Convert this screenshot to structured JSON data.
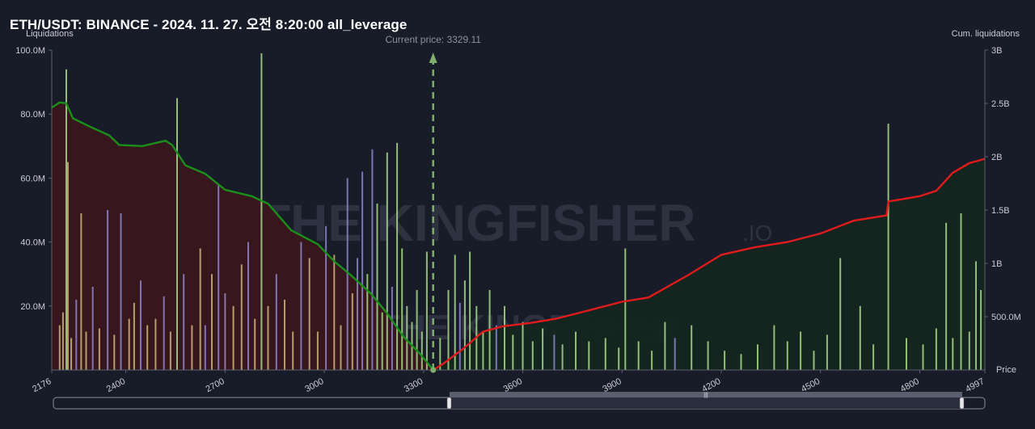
{
  "title": "ETH/USDT: BINANCE - 2024. 11. 27. 오전 8:20:00 all_leverage",
  "watermark": {
    "brand": "THE KINGFISHER",
    "suffix": ".IO"
  },
  "colors": {
    "background": "#181b28",
    "cumulative_short": "#1a8f1a",
    "cumulative_long": "#e01b1b",
    "short_fill": "#3a161d",
    "long_fill": "#13261d",
    "bars_below": "#c9b77a",
    "bars_above": "#a8d98a",
    "bars_alt": "#8d86c9",
    "current_price_line": "#7fae6e"
  },
  "chart_data": {
    "type": "bar+area",
    "title": "ETH/USDT: BINANCE - 2024. 11. 27. 오전 8:20:00 all_leverage",
    "ylabel_left": "Liquidations",
    "ylabel_right": "Cum. liquidations",
    "xlabel": "Price",
    "xlim": [
      2176,
      4997
    ],
    "ylim_left": [
      0,
      100000000
    ],
    "ylim_right": [
      0,
      3000000000
    ],
    "x_ticks": [
      2176,
      2400,
      2700,
      3000,
      3300,
      3600,
      3900,
      4200,
      4500,
      4800,
      4997
    ],
    "y_left_ticks": [
      {
        "value": 20000000,
        "label": "20.0M"
      },
      {
        "value": 40000000,
        "label": "40.0M"
      },
      {
        "value": 60000000,
        "label": "60.0M"
      },
      {
        "value": 80000000,
        "label": "80.0M"
      },
      {
        "value": 100000000,
        "label": "100.0M"
      }
    ],
    "y_right_ticks": [
      {
        "value": 500000000,
        "label": "500.0M"
      },
      {
        "value": 1000000000,
        "label": "1B"
      },
      {
        "value": 1500000000,
        "label": "1.5B"
      },
      {
        "value": 2000000000,
        "label": "2B"
      },
      {
        "value": 2500000000,
        "label": "2.5B"
      },
      {
        "value": 3000000000,
        "label": "3B"
      }
    ],
    "current_price": 3329.11,
    "current_price_label": "Current price: 3329.11",
    "bars": [
      {
        "x": 2200,
        "y": 14000000,
        "c": "bars_below"
      },
      {
        "x": 2210,
        "y": 18000000,
        "c": "bars_below"
      },
      {
        "x": 2220,
        "y": 94000000,
        "c": "bars_above"
      },
      {
        "x": 2225,
        "y": 65000000,
        "c": "bars_below"
      },
      {
        "x": 2235,
        "y": 10000000,
        "c": "bars_below"
      },
      {
        "x": 2250,
        "y": 22000000,
        "c": "bars_alt"
      },
      {
        "x": 2265,
        "y": 49000000,
        "c": "bars_below"
      },
      {
        "x": 2280,
        "y": 12000000,
        "c": "bars_below"
      },
      {
        "x": 2300,
        "y": 26000000,
        "c": "bars_alt"
      },
      {
        "x": 2320,
        "y": 13000000,
        "c": "bars_below"
      },
      {
        "x": 2345,
        "y": 50000000,
        "c": "bars_alt"
      },
      {
        "x": 2365,
        "y": 11000000,
        "c": "bars_below"
      },
      {
        "x": 2385,
        "y": 49000000,
        "c": "bars_alt"
      },
      {
        "x": 2410,
        "y": 16000000,
        "c": "bars_below"
      },
      {
        "x": 2425,
        "y": 21000000,
        "c": "bars_below"
      },
      {
        "x": 2445,
        "y": 28000000,
        "c": "bars_alt"
      },
      {
        "x": 2465,
        "y": 14000000,
        "c": "bars_below"
      },
      {
        "x": 2490,
        "y": 16000000,
        "c": "bars_below"
      },
      {
        "x": 2515,
        "y": 23000000,
        "c": "bars_alt"
      },
      {
        "x": 2535,
        "y": 12000000,
        "c": "bars_below"
      },
      {
        "x": 2555,
        "y": 85000000,
        "c": "bars_above"
      },
      {
        "x": 2575,
        "y": 30000000,
        "c": "bars_alt"
      },
      {
        "x": 2600,
        "y": 14000000,
        "c": "bars_below"
      },
      {
        "x": 2625,
        "y": 38000000,
        "c": "bars_below"
      },
      {
        "x": 2640,
        "y": 14000000,
        "c": "bars_alt"
      },
      {
        "x": 2660,
        "y": 30000000,
        "c": "bars_below"
      },
      {
        "x": 2680,
        "y": 58000000,
        "c": "bars_alt"
      },
      {
        "x": 2700,
        "y": 24000000,
        "c": "bars_alt"
      },
      {
        "x": 2725,
        "y": 20000000,
        "c": "bars_below"
      },
      {
        "x": 2750,
        "y": 33000000,
        "c": "bars_below"
      },
      {
        "x": 2770,
        "y": 40000000,
        "c": "bars_alt"
      },
      {
        "x": 2790,
        "y": 16000000,
        "c": "bars_below"
      },
      {
        "x": 2810,
        "y": 99000000,
        "c": "bars_above"
      },
      {
        "x": 2830,
        "y": 20000000,
        "c": "bars_below"
      },
      {
        "x": 2855,
        "y": 30000000,
        "c": "bars_alt"
      },
      {
        "x": 2880,
        "y": 22000000,
        "c": "bars_below"
      },
      {
        "x": 2905,
        "y": 12000000,
        "c": "bars_below"
      },
      {
        "x": 2930,
        "y": 40000000,
        "c": "bars_alt"
      },
      {
        "x": 2955,
        "y": 35000000,
        "c": "bars_below"
      },
      {
        "x": 2980,
        "y": 12000000,
        "c": "bars_below"
      },
      {
        "x": 3005,
        "y": 45000000,
        "c": "bars_alt"
      },
      {
        "x": 3030,
        "y": 36000000,
        "c": "bars_below"
      },
      {
        "x": 3050,
        "y": 14000000,
        "c": "bars_below"
      },
      {
        "x": 3070,
        "y": 60000000,
        "c": "bars_alt"
      },
      {
        "x": 3085,
        "y": 24000000,
        "c": "bars_below"
      },
      {
        "x": 3100,
        "y": 35000000,
        "c": "bars_alt"
      },
      {
        "x": 3115,
        "y": 62000000,
        "c": "bars_alt"
      },
      {
        "x": 3130,
        "y": 30000000,
        "c": "bars_above"
      },
      {
        "x": 3145,
        "y": 69000000,
        "c": "bars_alt"
      },
      {
        "x": 3160,
        "y": 52000000,
        "c": "bars_above"
      },
      {
        "x": 3175,
        "y": 18000000,
        "c": "bars_above"
      },
      {
        "x": 3190,
        "y": 68000000,
        "c": "bars_above"
      },
      {
        "x": 3205,
        "y": 26000000,
        "c": "bars_alt"
      },
      {
        "x": 3220,
        "y": 71000000,
        "c": "bars_above"
      },
      {
        "x": 3235,
        "y": 38000000,
        "c": "bars_above"
      },
      {
        "x": 3250,
        "y": 20000000,
        "c": "bars_above"
      },
      {
        "x": 3265,
        "y": 15000000,
        "c": "bars_above"
      },
      {
        "x": 3280,
        "y": 25000000,
        "c": "bars_above"
      },
      {
        "x": 3295,
        "y": 12000000,
        "c": "bars_above"
      },
      {
        "x": 3310,
        "y": 37000000,
        "c": "bars_above"
      },
      {
        "x": 3350,
        "y": 10000000,
        "c": "bars_above"
      },
      {
        "x": 3375,
        "y": 25000000,
        "c": "bars_above"
      },
      {
        "x": 3395,
        "y": 36000000,
        "c": "bars_above"
      },
      {
        "x": 3410,
        "y": 21000000,
        "c": "bars_alt"
      },
      {
        "x": 3425,
        "y": 28000000,
        "c": "bars_above"
      },
      {
        "x": 3440,
        "y": 37000000,
        "c": "bars_above"
      },
      {
        "x": 3460,
        "y": 20000000,
        "c": "bars_above"
      },
      {
        "x": 3480,
        "y": 12000000,
        "c": "bars_above"
      },
      {
        "x": 3500,
        "y": 25000000,
        "c": "bars_above"
      },
      {
        "x": 3520,
        "y": 14000000,
        "c": "bars_alt"
      },
      {
        "x": 3545,
        "y": 20000000,
        "c": "bars_above"
      },
      {
        "x": 3570,
        "y": 11000000,
        "c": "bars_above"
      },
      {
        "x": 3600,
        "y": 15000000,
        "c": "bars_above"
      },
      {
        "x": 3630,
        "y": 9000000,
        "c": "bars_above"
      },
      {
        "x": 3660,
        "y": 13000000,
        "c": "bars_above"
      },
      {
        "x": 3695,
        "y": 11000000,
        "c": "bars_alt"
      },
      {
        "x": 3720,
        "y": 8000000,
        "c": "bars_above"
      },
      {
        "x": 3760,
        "y": 12000000,
        "c": "bars_above"
      },
      {
        "x": 3800,
        "y": 9000000,
        "c": "bars_above"
      },
      {
        "x": 3850,
        "y": 10000000,
        "c": "bars_above"
      },
      {
        "x": 3890,
        "y": 7000000,
        "c": "bars_above"
      },
      {
        "x": 3910,
        "y": 38000000,
        "c": "bars_above"
      },
      {
        "x": 3950,
        "y": 9000000,
        "c": "bars_above"
      },
      {
        "x": 3990,
        "y": 6000000,
        "c": "bars_above"
      },
      {
        "x": 4030,
        "y": 15000000,
        "c": "bars_above"
      },
      {
        "x": 4060,
        "y": 10000000,
        "c": "bars_alt"
      },
      {
        "x": 4110,
        "y": 14000000,
        "c": "bars_above"
      },
      {
        "x": 4160,
        "y": 9000000,
        "c": "bars_above"
      },
      {
        "x": 4210,
        "y": 6000000,
        "c": "bars_above"
      },
      {
        "x": 4260,
        "y": 5000000,
        "c": "bars_above"
      },
      {
        "x": 4310,
        "y": 8000000,
        "c": "bars_above"
      },
      {
        "x": 4360,
        "y": 14000000,
        "c": "bars_above"
      },
      {
        "x": 4400,
        "y": 9000000,
        "c": "bars_above"
      },
      {
        "x": 4440,
        "y": 12000000,
        "c": "bars_above"
      },
      {
        "x": 4480,
        "y": 6000000,
        "c": "bars_above"
      },
      {
        "x": 4520,
        "y": 11000000,
        "c": "bars_above"
      },
      {
        "x": 4560,
        "y": 35000000,
        "c": "bars_above"
      },
      {
        "x": 4620,
        "y": 20000000,
        "c": "bars_above"
      },
      {
        "x": 4660,
        "y": 8000000,
        "c": "bars_above"
      },
      {
        "x": 4705,
        "y": 77000000,
        "c": "bars_above"
      },
      {
        "x": 4760,
        "y": 10000000,
        "c": "bars_above"
      },
      {
        "x": 4810,
        "y": 8000000,
        "c": "bars_above"
      },
      {
        "x": 4850,
        "y": 13000000,
        "c": "bars_above"
      },
      {
        "x": 4880,
        "y": 46000000,
        "c": "bars_above"
      },
      {
        "x": 4900,
        "y": 10000000,
        "c": "bars_above"
      },
      {
        "x": 4925,
        "y": 49000000,
        "c": "bars_above"
      },
      {
        "x": 4950,
        "y": 12000000,
        "c": "bars_above"
      },
      {
        "x": 4970,
        "y": 34000000,
        "c": "bars_above"
      },
      {
        "x": 4985,
        "y": 25000000,
        "c": "bars_above"
      }
    ],
    "cum_short": [
      [
        2176,
        2460000000
      ],
      [
        2200,
        2510000000
      ],
      [
        2220,
        2500000000
      ],
      [
        2240,
        2360000000
      ],
      [
        2300,
        2270000000
      ],
      [
        2350,
        2200000000
      ],
      [
        2380,
        2110000000
      ],
      [
        2450,
        2100000000
      ],
      [
        2520,
        2150000000
      ],
      [
        2540,
        2110000000
      ],
      [
        2580,
        1920000000
      ],
      [
        2640,
        1840000000
      ],
      [
        2700,
        1690000000
      ],
      [
        2780,
        1630000000
      ],
      [
        2830,
        1560000000
      ],
      [
        2900,
        1310000000
      ],
      [
        2980,
        1180000000
      ],
      [
        3030,
        1020000000
      ],
      [
        3080,
        890000000
      ],
      [
        3140,
        720000000
      ],
      [
        3190,
        530000000
      ],
      [
        3240,
        310000000
      ],
      [
        3290,
        150000000
      ],
      [
        3329.11,
        0
      ]
    ],
    "cum_long": [
      [
        3329.11,
        0
      ],
      [
        3360,
        60000000
      ],
      [
        3420,
        200000000
      ],
      [
        3480,
        360000000
      ],
      [
        3540,
        410000000
      ],
      [
        3620,
        440000000
      ],
      [
        3700,
        480000000
      ],
      [
        3800,
        560000000
      ],
      [
        3900,
        640000000
      ],
      [
        3980,
        680000000
      ],
      [
        4100,
        890000000
      ],
      [
        4200,
        1080000000
      ],
      [
        4300,
        1150000000
      ],
      [
        4400,
        1200000000
      ],
      [
        4500,
        1280000000
      ],
      [
        4600,
        1400000000
      ],
      [
        4700,
        1450000000
      ],
      [
        4705,
        1580000000
      ],
      [
        4800,
        1630000000
      ],
      [
        4850,
        1680000000
      ],
      [
        4900,
        1850000000
      ],
      [
        4950,
        1940000000
      ],
      [
        4997,
        1980000000
      ]
    ]
  },
  "scrollbar": {
    "range_start": 0.53,
    "range_end": 1.0
  }
}
